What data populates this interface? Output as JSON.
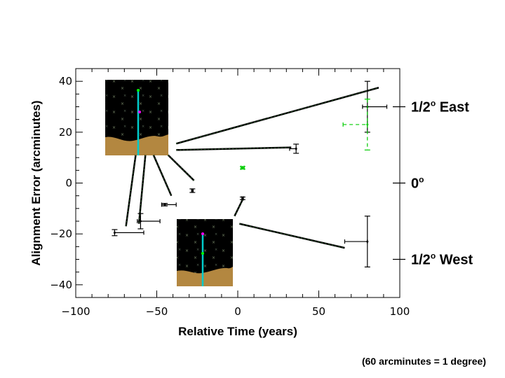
{
  "chart_data": {
    "type": "scatter",
    "xlabel": "Relative Time (years)",
    "ylabel": "Alignment Error (arcminutes)",
    "xlim": [
      -100,
      100
    ],
    "ylim": [
      -45,
      45
    ],
    "x_ticks": [
      -100,
      -50,
      0,
      50,
      100
    ],
    "x_tick_labels": [
      "−100",
      "−50",
      "0",
      "50",
      "100"
    ],
    "y_ticks": [
      -40,
      -20,
      0,
      20,
      40
    ],
    "y_tick_labels": [
      "−40",
      "−20",
      "0",
      "20",
      "40"
    ],
    "grid": false,
    "right_labels": [
      {
        "y": 30,
        "main": "1/2",
        "sup": "o",
        "rest": " East"
      },
      {
        "y": 0,
        "main": "0",
        "sup": "o",
        "rest": ""
      },
      {
        "y": -30,
        "main": "1/2",
        "sup": "o",
        "rest": " West"
      }
    ],
    "footnote": "(60 arcminutes = 1 degree)",
    "series": [
      {
        "color": "#000000",
        "style": "solid",
        "points": [
          {
            "x": -76,
            "y": -19.5,
            "xerr": [
              0,
              18
            ],
            "yerr": 1.2
          },
          {
            "x": -60,
            "y": -15,
            "xerr": [
              2,
              12
            ],
            "yerr": 3
          },
          {
            "x": -45,
            "y": -8.5,
            "xerr": [
              2,
              7
            ],
            "yerr": 0.5
          },
          {
            "x": -28,
            "y": -3,
            "xerr": [
              0.5,
              0.5
            ],
            "yerr": 0.7
          },
          {
            "x": 3,
            "y": -6,
            "xerr": [
              0.5,
              0.5
            ],
            "yerr": 0.5
          },
          {
            "x": 36,
            "y": 13.5,
            "xerr": [
              4,
              0
            ],
            "yerr": 1.8
          },
          {
            "x": 80,
            "y": 30,
            "xerr": [
              3,
              12
            ],
            "yerr": 10
          },
          {
            "x": 80,
            "y": -23,
            "xerr": [
              14,
              0
            ],
            "yerr": 10
          }
        ]
      },
      {
        "color": "#00cc00",
        "style": "dashed",
        "points": [
          {
            "x": 3,
            "y": 6,
            "xerr": [
              1,
              1
            ],
            "yerr": 0.5
          },
          {
            "x": 80,
            "y": 23,
            "xerr": [
              15,
              0
            ],
            "yerr": 10
          }
        ]
      }
    ],
    "connectors": [
      {
        "x1": -38,
        "y1": 15.5,
        "x2": 87,
        "y2": 37.5
      },
      {
        "x1": -38,
        "y1": 13,
        "x2": 33,
        "y2": 14
      },
      {
        "x1": -63,
        "y1": 11,
        "x2": -69,
        "y2": -17
      },
      {
        "x1": -57,
        "y1": 11,
        "x2": -61,
        "y2": -16
      },
      {
        "x1": -52,
        "y1": 11,
        "x2": -41,
        "y2": -5
      },
      {
        "x1": -43,
        "y1": 11,
        "x2": -27,
        "y2": 1
      },
      {
        "x1": 3,
        "y1": -6.5,
        "x2": -2,
        "y2": -13
      },
      {
        "x1": 1,
        "y1": -16,
        "x2": 66,
        "y2": -25.5
      }
    ]
  }
}
